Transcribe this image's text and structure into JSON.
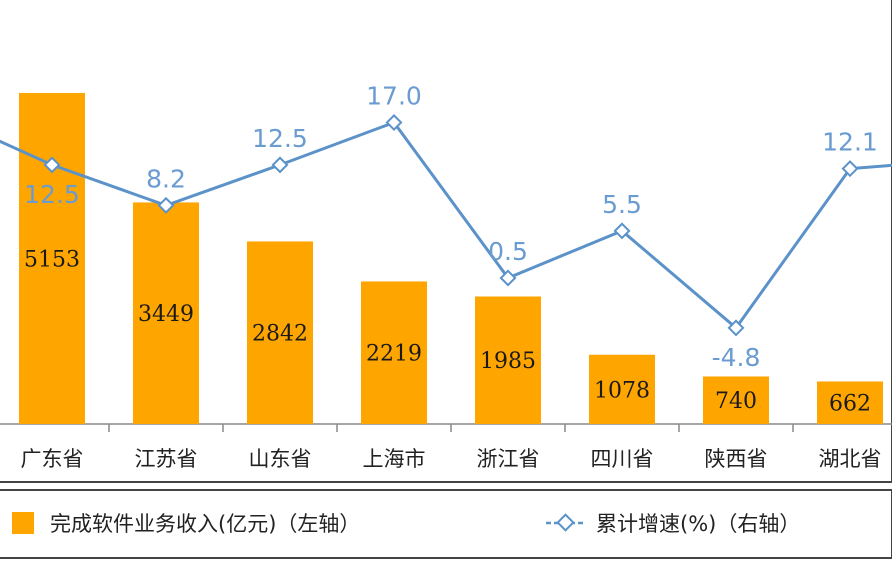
{
  "chart_data": {
    "type": "bar+line",
    "categories": [
      "广东省",
      "江苏省",
      "山东省",
      "上海市",
      "浙江省",
      "四川省",
      "陕西省",
      "湖北省"
    ],
    "series": [
      {
        "name": "完成软件业务收入(亿元)（左轴）",
        "type": "bar",
        "axis": "left",
        "values": [
          5153,
          3449,
          2842,
          2219,
          1985,
          1078,
          740,
          662
        ],
        "labels": [
          "5153",
          "3449",
          "2842",
          "2219",
          "1985",
          "1078",
          "740",
          "662"
        ]
      },
      {
        "name": "累计增速(%)（右轴）",
        "type": "line",
        "axis": "right",
        "values": [
          12.5,
          8.2,
          12.5,
          17.0,
          0.5,
          5.5,
          -4.8,
          12.1
        ],
        "labels": [
          "12.5",
          "8.2",
          "12.5",
          "17.0",
          "0.5",
          "5.5",
          "-4.8",
          "12.1"
        ]
      }
    ],
    "ylim_left": [
      0,
      6600
    ],
    "ylim_right": [
      -15,
      30
    ],
    "colors": {
      "bar": "#ffa500",
      "line": "#5b92c9",
      "line_label": "#6a9bd1"
    },
    "legend_position": "bottom"
  }
}
